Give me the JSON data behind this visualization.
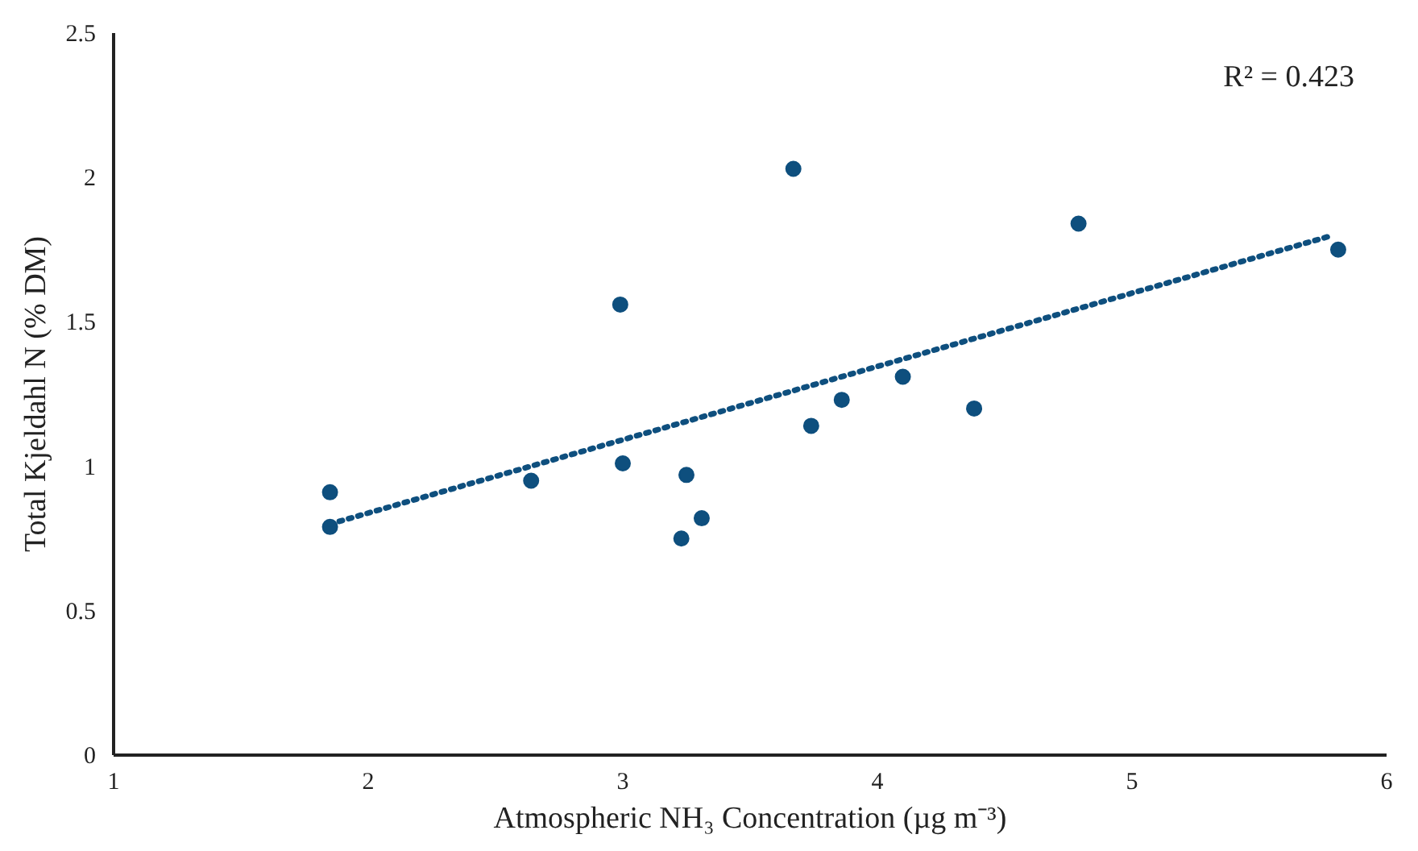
{
  "chart_data": {
    "type": "scatter",
    "xlabel": "Atmospheric NH₃ Concentration (µg m⁻³)",
    "ylabel": "Total Kjeldahl N (% DM)",
    "annotations": [
      "R² = 0.423"
    ],
    "xlim": [
      1,
      6
    ],
    "xticks": [
      1,
      2,
      3,
      4,
      5,
      6
    ],
    "ylim": [
      0,
      2.5
    ],
    "yticks": [
      0,
      0.5,
      1,
      1.5,
      2,
      2.5
    ],
    "grid": false,
    "series": [
      {
        "marker": "circle",
        "color": "#0e4f7e",
        "x": [
          1.85,
          1.85,
          2.64,
          2.99,
          3.0,
          3.23,
          3.25,
          3.31,
          3.67,
          3.74,
          3.86,
          4.1,
          4.38,
          4.79,
          5.81
        ],
        "values": [
          0.91,
          0.79,
          0.95,
          1.56,
          1.01,
          0.75,
          0.97,
          0.82,
          2.03,
          1.14,
          1.23,
          1.31,
          1.2,
          1.84,
          1.75
        ]
      },
      {
        "type": "line",
        "color": "#0e4f7e",
        "line_style": "dotted",
        "x": [
          1.85,
          5.79
        ],
        "values": [
          0.8,
          1.8
        ]
      }
    ]
  }
}
